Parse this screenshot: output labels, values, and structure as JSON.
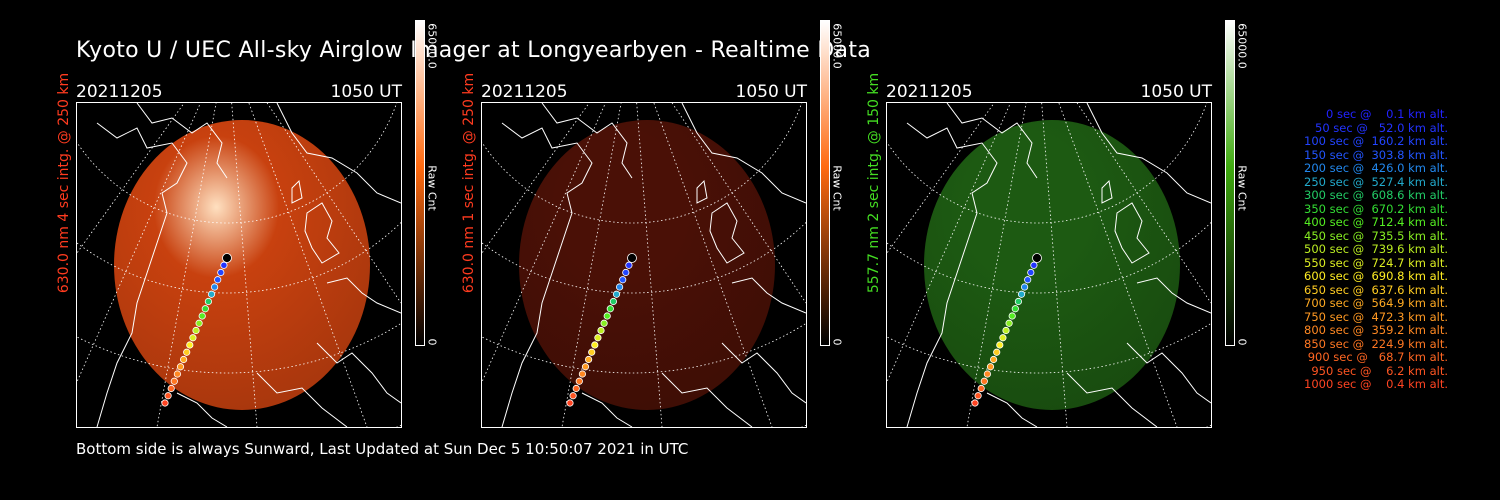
{
  "title": "Kyoto U / UEC All-sky Airglow Imager at Longyearbyen - Realtime Data",
  "footer": "Bottom side is always Sunward, Last Updated at Sun Dec  5 10:50:07 2021 in UTC",
  "panels": [
    {
      "date": "20211205",
      "time": "1050 UT",
      "side_label": "630.0 nm 4 sec intg. @ 250 km",
      "label_color": "#ff3b1f",
      "cbar_max": "65000.0",
      "cbar_mid": "Raw Cnt",
      "cbar_min": "0",
      "image_color": "#c8410f",
      "bar_top": "#ffffff",
      "bar_mid": "#ff6a10",
      "bar_bot": "#000000"
    },
    {
      "date": "20211205",
      "time": "1050 UT",
      "side_label": "630.0 nm 1 sec intg. @ 250 km",
      "label_color": "#ff3b1f",
      "cbar_max": "65000.0",
      "cbar_mid": "Raw Cnt",
      "cbar_min": "0",
      "image_color": "#4a1006",
      "bar_top": "#ffffff",
      "bar_mid": "#ff6a10",
      "bar_bot": "#000000"
    },
    {
      "date": "20211205",
      "time": "1050 UT",
      "side_label": "557.7 nm 2 sec intg. @ 150 km",
      "label_color": "#44dd22",
      "cbar_max": "65000.0",
      "cbar_mid": "Raw Cnt",
      "cbar_min": "0",
      "image_color": "#1d5a12",
      "bar_top": "#ffffff",
      "bar_mid": "#3faa10",
      "bar_bot": "#000000"
    }
  ],
  "legend": [
    {
      "text": "0 sec @    0.1 km alt.",
      "color": "#2222ff"
    },
    {
      "text": "50 sec @   52.0 km alt.",
      "color": "#2233ff"
    },
    {
      "text": "100 sec @  160.2 km alt.",
      "color": "#2244ff"
    },
    {
      "text": "150 sec @  303.8 km alt.",
      "color": "#2255ff"
    },
    {
      "text": "200 sec @  426.0 km alt.",
      "color": "#2288ee"
    },
    {
      "text": "250 sec @  527.4 km alt.",
      "color": "#22aacc"
    },
    {
      "text": "300 sec @  608.6 km alt.",
      "color": "#22cc66"
    },
    {
      "text": "350 sec @  670.2 km alt.",
      "color": "#33dd33"
    },
    {
      "text": "400 sec @  712.4 km alt.",
      "color": "#55ee22"
    },
    {
      "text": "450 sec @  735.5 km alt.",
      "color": "#88ee22"
    },
    {
      "text": "500 sec @  739.6 km alt.",
      "color": "#bbee22"
    },
    {
      "text": "550 sec @  724.7 km alt.",
      "color": "#ddee22"
    },
    {
      "text": "600 sec @  690.8 km alt.",
      "color": "#ffee22"
    },
    {
      "text": "650 sec @  637.6 km alt.",
      "color": "#ffcc22"
    },
    {
      "text": "700 sec @  564.9 km alt.",
      "color": "#ffaa22"
    },
    {
      "text": "750 sec @  472.3 km alt.",
      "color": "#ff9922"
    },
    {
      "text": "800 sec @  359.2 km alt.",
      "color": "#ff8822"
    },
    {
      "text": "850 sec @  224.9 km alt.",
      "color": "#ff7722"
    },
    {
      "text": "900 sec @   68.7 km alt.",
      "color": "#ff6622"
    },
    {
      "text": "950 sec @    6.2 km alt.",
      "color": "#ff5522"
    },
    {
      "text": "1000 sec @    0.4 km alt.",
      "color": "#ff4422"
    }
  ]
}
